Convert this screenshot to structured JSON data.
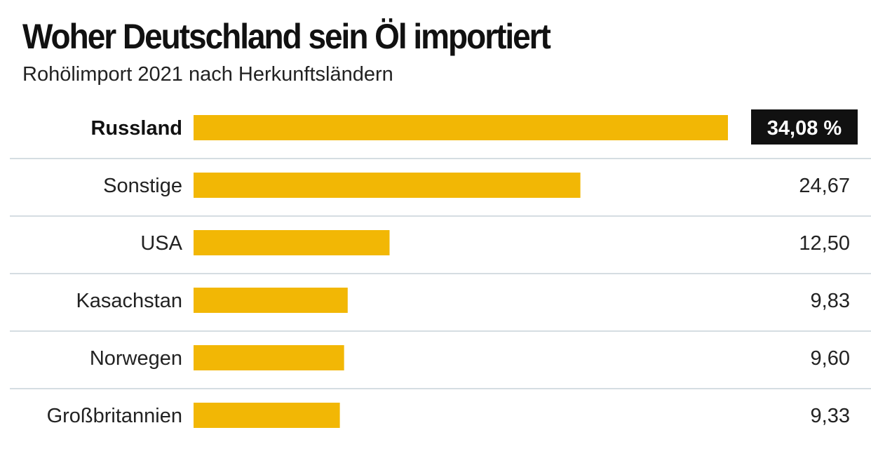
{
  "title": "Woher Deutschland sein Öl importiert",
  "subtitle": "Rohölimport 2021 nach Herkunftsländern",
  "colors": {
    "bar": "#f2b705",
    "divider": "#d5dde2",
    "highlight_box": "#111111"
  },
  "chart_data": {
    "type": "bar",
    "orientation": "horizontal",
    "categories": [
      "Russland",
      "Sonstige",
      "USA",
      "Kasachstan",
      "Norwegen",
      "Großbritannien"
    ],
    "values": [
      34.08,
      24.67,
      12.5,
      9.83,
      9.6,
      9.33
    ],
    "value_labels": [
      "34,08 %",
      "24,67",
      "12,50",
      "9,83",
      "9,60",
      "9,33"
    ],
    "highlight_index": 0,
    "title": "Woher Deutschland sein Öl importiert",
    "subtitle": "Rohölimport 2021 nach Herkunftsländern",
    "xlabel": "",
    "ylabel": "",
    "xlim": [
      0,
      34.08
    ],
    "grid": false,
    "legend": "none"
  }
}
